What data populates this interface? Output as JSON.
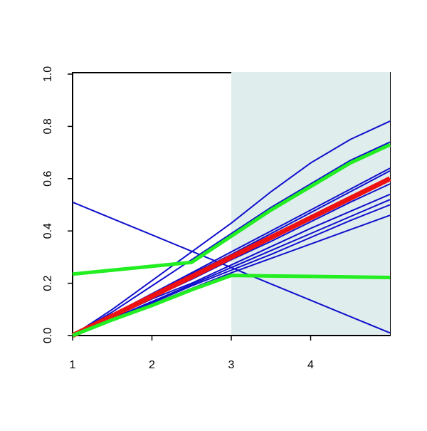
{
  "chart_data": {
    "type": "line",
    "x": [
      1,
      1.5,
      2,
      2.5,
      3,
      3.5,
      4,
      4.5,
      5
    ],
    "xlim": [
      1,
      5
    ],
    "xticks": [
      1,
      2,
      3,
      4
    ],
    "ylim": [
      0,
      1
    ],
    "yticks": [
      {
        "value": 0,
        "label": "0.0"
      },
      {
        "value": 0.2,
        "label": "0.2"
      },
      {
        "value": 0.4,
        "label": "0.4"
      },
      {
        "value": 0.6,
        "label": "0.6"
      },
      {
        "value": 0.8,
        "label": "0.8"
      },
      {
        "value": 1,
        "label": "1.0"
      }
    ],
    "shaded_region": [
      3,
      5
    ],
    "shade_color": "#e0eded",
    "series": [
      {
        "color": "#1010cc",
        "width": 2,
        "values": [
          0,
          0.1,
          0.21,
          0.32,
          0.43,
          0.55,
          0.66,
          0.75,
          0.82
        ]
      },
      {
        "color": "#1010cc",
        "width": 2,
        "values": [
          0,
          0.09,
          0.19,
          0.29,
          0.39,
          0.49,
          0.58,
          0.67,
          0.74
        ]
      },
      {
        "color": "#1010cc",
        "width": 2,
        "values": [
          0,
          0.08,
          0.16,
          0.24,
          0.32,
          0.4,
          0.48,
          0.56,
          0.64
        ]
      },
      {
        "color": "#1010cc",
        "width": 2,
        "values": [
          0,
          0.08,
          0.155,
          0.235,
          0.31,
          0.39,
          0.47,
          0.55,
          0.63
        ]
      },
      {
        "color": "#1010cc",
        "width": 2,
        "values": [
          0,
          0.07,
          0.145,
          0.215,
          0.29,
          0.36,
          0.435,
          0.51,
          0.58
        ]
      },
      {
        "color": "#1010cc",
        "width": 2,
        "values": [
          0,
          0.07,
          0.14,
          0.2,
          0.27,
          0.34,
          0.41,
          0.475,
          0.54
        ]
      },
      {
        "color": "#1010cc",
        "width": 2,
        "values": [
          0,
          0.065,
          0.13,
          0.195,
          0.26,
          0.325,
          0.39,
          0.455,
          0.52
        ]
      },
      {
        "color": "#1010cc",
        "width": 2,
        "values": [
          0,
          0.065,
          0.125,
          0.19,
          0.25,
          0.31,
          0.375,
          0.44,
          0.5
        ]
      },
      {
        "color": "#1010cc",
        "width": 2,
        "values": [
          0,
          0.06,
          0.12,
          0.18,
          0.24,
          0.295,
          0.35,
          0.405,
          0.46
        ]
      },
      {
        "color": "#1010cc",
        "width": 2,
        "values": [
          0.51,
          0.4475,
          0.385,
          0.3225,
          0.26,
          0.1975,
          0.135,
          0.0725,
          0.01
        ]
      },
      {
        "color": "#ee1111",
        "width": 7,
        "values": [
          0,
          0.075,
          0.15,
          0.225,
          0.3,
          0.375,
          0.45,
          0.525,
          0.6
        ]
      },
      {
        "color": "#22ee22",
        "width": 5,
        "values": [
          0.235,
          0.25,
          0.265,
          0.28,
          0.38,
          0.48,
          0.57,
          0.66,
          0.73
        ]
      },
      {
        "color": "#22ee22",
        "width": 5,
        "values": [
          0,
          0.06,
          0.115,
          0.175,
          0.23,
          0.228,
          0.226,
          0.224,
          0.222
        ]
      }
    ]
  }
}
